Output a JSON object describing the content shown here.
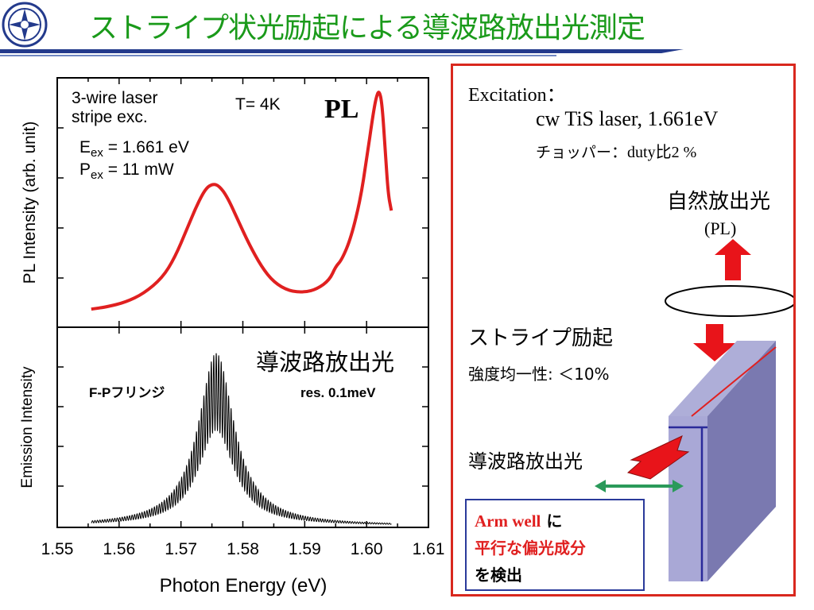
{
  "title": "ストライプ状光励起による導波路放出光測定",
  "colors": {
    "title": "#1a9a1a",
    "accent": "#d9281e",
    "rule": "#233a8c",
    "stripe": "#e02020",
    "waveguide_arrow": "#2a9a5a",
    "pl_curve": "#e02020"
  },
  "logo_icon": "university-emblem-icon",
  "chart_data": [
    {
      "type": "line",
      "panel": "top",
      "ylabel": "PL Intensity (arb. unit)",
      "xlim": [
        1.55,
        1.61
      ],
      "ylim": [
        0,
        1
      ],
      "series_color": "#e02020",
      "annotations": {
        "tag": "PL",
        "temp": "T= 4K",
        "line1": "3-wire laser",
        "line2": "stripe exc.",
        "eex_sym": "E",
        "eex_sub": "ex",
        "eex_val": " = 1.661 eV",
        "pex_sym": "P",
        "pex_sub": "ex",
        "pex_val": " = 11 mW"
      },
      "x": [
        1.5555,
        1.558,
        1.561,
        1.564,
        1.567,
        1.569,
        1.571,
        1.5725,
        1.574,
        1.5752,
        1.5762,
        1.5775,
        1.579,
        1.581,
        1.583,
        1.585,
        1.5875,
        1.59,
        1.592,
        1.594,
        1.595,
        1.596,
        1.5975,
        1.599,
        1.6,
        1.601,
        1.6015,
        1.602,
        1.6025,
        1.603,
        1.6035,
        1.604
      ],
      "y": [
        0.01,
        0.02,
        0.04,
        0.08,
        0.15,
        0.24,
        0.37,
        0.47,
        0.55,
        0.57,
        0.56,
        0.51,
        0.42,
        0.3,
        0.2,
        0.13,
        0.09,
        0.085,
        0.1,
        0.14,
        0.2,
        0.23,
        0.33,
        0.5,
        0.68,
        0.87,
        0.95,
        0.99,
        0.93,
        0.72,
        0.52,
        0.45
      ]
    },
    {
      "type": "line",
      "panel": "bottom",
      "ylabel": "Emission Intensity",
      "xlabel": "Photon Energy (eV)",
      "xticks": [
        "1.55",
        "1.56",
        "1.57",
        "1.58",
        "1.59",
        "1.60",
        "1.61"
      ],
      "xlim": [
        1.55,
        1.61
      ],
      "ylim": [
        0,
        1
      ],
      "series_color": "#000000",
      "annotations": {
        "waveguide": "導波路放出光",
        "fringe": "F-Pフリンジ",
        "res": "res. 0.1meV"
      },
      "peak_center": 1.5757,
      "peak_halfwidth": 0.0035,
      "fringe_period_ev": 0.0004,
      "x_range": [
        1.5555,
        1.604
      ],
      "peak_value": 0.93
    }
  ],
  "panel": {
    "excitation": "Excitation：",
    "laser": "cw TiS laser, 1.661eV",
    "chopper_jp": "チョッパー",
    "chopper_val": "：duty比2 %",
    "natural_emission": "自然放出光",
    "pl": "(PL)",
    "stripe_exc": "ストライプ励起",
    "uniformity": "強度均一性: ＜10%",
    "waveguide_emission": "導波路放出光",
    "note_red1": "Arm well",
    "note_black1": " に",
    "note_red2": "平行な偏光成分",
    "note_black2": "を検出"
  }
}
